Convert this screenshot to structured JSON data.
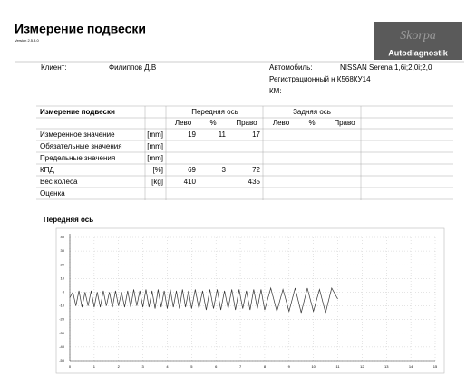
{
  "header": {
    "title": "Измерение подвески",
    "version": "Version 2.5.8.0",
    "logo_brand": "Skorpa",
    "logo_text": "Autodiagnostik"
  },
  "info": {
    "client_label": "Клиент:",
    "client": "Филиппов Д.В",
    "car_label": "Автомобиль:",
    "car": "NISSAN Serena 1,6i;2,0i;2,0",
    "registration": "Регистрационный н К568КУ14",
    "km_label": "КМ:"
  },
  "table": {
    "title": "Измерение подвески",
    "front_axle": "Передняя ось",
    "rear_axle": "Задняя ось",
    "left": "Лево",
    "percent": "%",
    "right": "Право",
    "rows": [
      {
        "label": "Измеренное значение",
        "unit": "[mm]",
        "front_left": "19",
        "front_percent": "11",
        "front_right": "17"
      },
      {
        "label": "Обязательные значения",
        "unit": "[mm]"
      },
      {
        "label": "Предельные значения",
        "unit": "[mm]"
      },
      {
        "label": "КПД",
        "unit": "[%]",
        "front_left": "69",
        "front_percent": "3",
        "front_right": "72"
      },
      {
        "label": "Вес колеса",
        "unit": "[kg]",
        "front_left": "410",
        "front_right": "435"
      },
      {
        "label": "Оценка"
      }
    ]
  },
  "chart_data": {
    "type": "line",
    "title": "Передняя ось",
    "x": [
      0,
      0.125,
      0.25,
      0.375,
      0.5,
      0.625,
      0.75,
      0.875,
      1,
      1.125,
      1.25,
      1.375,
      1.5,
      1.625,
      1.75,
      1.875,
      2,
      2.125,
      2.25,
      2.375,
      2.5,
      2.625,
      2.75,
      2.875,
      3,
      3.125,
      3.25,
      3.375,
      3.5,
      3.625,
      3.75,
      3.875,
      4,
      4.125,
      4.25,
      4.375,
      4.5,
      4.625,
      4.75,
      4.875,
      5,
      5.15,
      5.3,
      5.45,
      5.6,
      5.75,
      5.9,
      6.05,
      6.2,
      6.35,
      6.5,
      6.65,
      6.8,
      6.95,
      7.1,
      7.25,
      7.4,
      7.55,
      7.7,
      7.85,
      8,
      8.25,
      8.5,
      8.75,
      9,
      9.25,
      9.5,
      9.75,
      10,
      10.25,
      10.5,
      10.75,
      11
    ],
    "series": [
      {
        "color": "#333333",
        "values": [
          -4,
          0,
          -10,
          1,
          -11,
          0,
          -10,
          1,
          -11,
          0,
          -11,
          1,
          -10,
          0,
          -11,
          1,
          -10,
          0,
          -11,
          1,
          -11,
          2,
          -10,
          1,
          -11,
          2,
          -11,
          1,
          -12,
          2,
          -11,
          1,
          -12,
          2,
          -11,
          1,
          -12,
          2,
          -11,
          1,
          -12,
          2,
          -12,
          1,
          -13,
          2,
          -12,
          2,
          -13,
          1,
          -12,
          2,
          -13,
          2,
          -12,
          1,
          -13,
          2,
          -12,
          2,
          -13,
          3,
          -14,
          2,
          -14,
          3,
          -15,
          3,
          -14,
          2,
          -15,
          3,
          -5
        ]
      }
    ],
    "xlim": [
      0,
      15
    ],
    "xticks": [
      0,
      1,
      2,
      3,
      4,
      5,
      6,
      7,
      8,
      9,
      10,
      11,
      12,
      13,
      14,
      15
    ],
    "ylim": [
      -50,
      40
    ],
    "yticks": [
      40,
      30,
      20,
      10,
      0,
      -10,
      -20,
      -30,
      -40,
      -50
    ],
    "grid": true
  }
}
